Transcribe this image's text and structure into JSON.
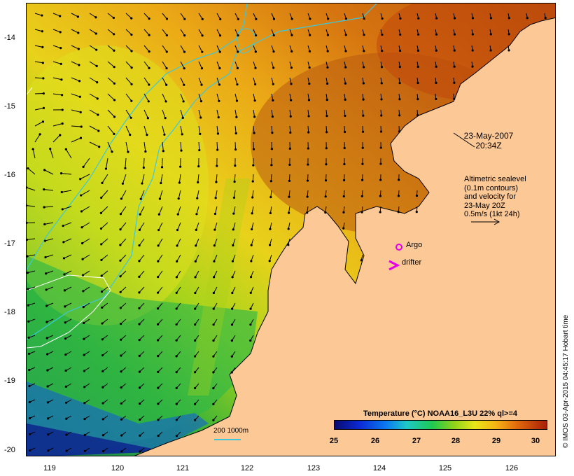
{
  "map": {
    "title": "Temperature (°C) NOAA16_L3U 22% ql>=4",
    "timestamp_line1": "23-May-2007",
    "timestamp_line2": "20:34Z",
    "altimetry_note": [
      "Altimetric sealevel",
      "(0.1m contours)",
      "and velocity for",
      "23-May 20Z",
      "0.5m/s (1kt 24h)"
    ],
    "argo_label": "Argo",
    "drifter_label": "drifter",
    "depth_label": "200  1000m",
    "credit": "© IMOS 03-Apr-2015 04:45:17 Hobart time",
    "x_axis_ticks": [
      "119",
      "120",
      "121",
      "122",
      "123",
      "124",
      "125",
      "126"
    ],
    "y_axis_ticks": [
      "-14",
      "-15",
      "-16",
      "-17",
      "-18",
      "-19",
      "-20"
    ],
    "colorbar_ticks": [
      "25",
      "26",
      "27",
      "28",
      "29",
      "30"
    ],
    "colors": {
      "land": "#fcc896",
      "contour_200_1000m": "#3cc8dc",
      "argo_marker": "#e600e6",
      "drifter_marker": "#e600e6"
    }
  }
}
